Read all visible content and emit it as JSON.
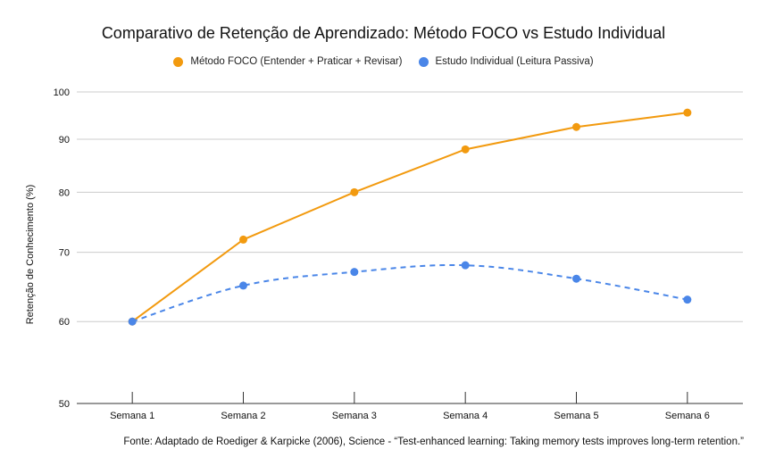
{
  "chart_data": {
    "type": "line",
    "title": "Comparativo de Retenção de Aprendizado: Método FOCO vs Estudo Individual",
    "xlabel": "",
    "ylabel": "Retenção de Conhecimento (%)",
    "categories": [
      "Semana 1",
      "Semana 2",
      "Semana 3",
      "Semana 4",
      "Semana 5",
      "Semana 6"
    ],
    "yticks": [
      50,
      60,
      70,
      80,
      90,
      100
    ],
    "ylim": [
      50,
      100
    ],
    "y_scale": "log",
    "grid": true,
    "legend_position": "top",
    "series": [
      {
        "name": "Método FOCO (Entender + Praticar + Revisar)",
        "values": [
          60,
          72,
          80,
          88,
          92.5,
          95.5
        ],
        "color": "#f29a0f",
        "line_style": "solid"
      },
      {
        "name": "Estudo Individual (Leitura Passiva)",
        "values": [
          60,
          65,
          67,
          68,
          66,
          63
        ],
        "color": "#4a86e8",
        "line_style": "dashed"
      }
    ]
  },
  "source_note": "Fonte: Adaptado de Roediger & Karpicke (2006), Science - “Test-enhanced learning: Taking memory tests improves long-term retention.”"
}
